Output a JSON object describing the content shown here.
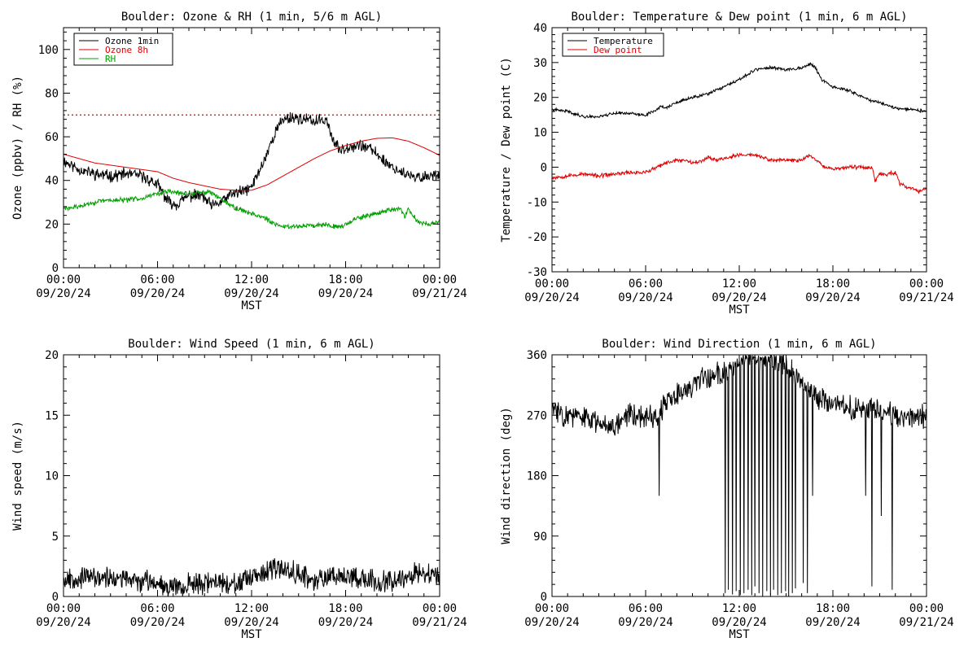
{
  "chart_data": [
    {
      "type": "line",
      "title": "Boulder: Ozone & RH (1 min, 5/6 m AGL)",
      "ylabel": "Ozone (ppbv) / RH (%)",
      "xlabel": "MST",
      "ylim": [
        0,
        110
      ],
      "yticks": [
        0,
        20,
        40,
        60,
        80,
        100
      ],
      "xlim_hours": [
        0,
        24
      ],
      "xticks": [
        {
          "h": 0,
          "time": "00:00",
          "date": "09/20/24"
        },
        {
          "h": 6,
          "time": "06:00",
          "date": "09/20/24"
        },
        {
          "h": 12,
          "time": "12:00",
          "date": "09/20/24"
        },
        {
          "h": 18,
          "time": "18:00",
          "date": "09/20/24"
        },
        {
          "h": 24,
          "time": "00:00",
          "date": "09/21/24"
        }
      ],
      "legend_position": "top-left",
      "reference_line": {
        "y": 70,
        "color": "#d40000",
        "style": "dotted"
      },
      "series": [
        {
          "name": "Ozone 1min",
          "color": "#000000",
          "noise": 2.2,
          "seed": 11,
          "points": [
            [
              0,
              49
            ],
            [
              1,
              45
            ],
            [
              2,
              43
            ],
            [
              3,
              42
            ],
            [
              4,
              43
            ],
            [
              5,
              42
            ],
            [
              6,
              38
            ],
            [
              6.7,
              30
            ],
            [
              7.2,
              29
            ],
            [
              8,
              33
            ],
            [
              8.8,
              33
            ],
            [
              9.5,
              28
            ],
            [
              10,
              30
            ],
            [
              10.8,
              34
            ],
            [
              11.5,
              35
            ],
            [
              12,
              37
            ],
            [
              12.8,
              49
            ],
            [
              13.5,
              62
            ],
            [
              14,
              68
            ],
            [
              14.6,
              69
            ],
            [
              15.3,
              68
            ],
            [
              16,
              67
            ],
            [
              16.8,
              68
            ],
            [
              17.2,
              58
            ],
            [
              17.6,
              54
            ],
            [
              18.3,
              56
            ],
            [
              19,
              56
            ],
            [
              19.7,
              54
            ],
            [
              20.3,
              50
            ],
            [
              21,
              46
            ],
            [
              21.8,
              43
            ],
            [
              22.4,
              41
            ],
            [
              23.2,
              42
            ],
            [
              24,
              43
            ]
          ]
        },
        {
          "name": "Ozone 8h",
          "color": "#e00000",
          "noise": 0,
          "seed": 0,
          "points": [
            [
              0,
              52
            ],
            [
              2,
              48
            ],
            [
              4,
              46
            ],
            [
              6,
              44
            ],
            [
              7,
              41
            ],
            [
              8,
              39
            ],
            [
              9,
              37.5
            ],
            [
              10,
              36
            ],
            [
              11,
              35.5
            ],
            [
              12,
              35.5
            ],
            [
              13,
              38
            ],
            [
              14,
              42
            ],
            [
              15,
              46
            ],
            [
              16,
              50
            ],
            [
              17,
              53.5
            ],
            [
              18,
              56
            ],
            [
              19,
              58
            ],
            [
              20,
              59.3
            ],
            [
              21,
              59.5
            ],
            [
              22,
              58
            ],
            [
              23,
              55
            ],
            [
              24,
              51.5
            ]
          ]
        },
        {
          "name": "RH",
          "color": "#00a000",
          "noise": 0.9,
          "seed": 29,
          "points": [
            [
              0,
              27
            ],
            [
              1,
              28
            ],
            [
              2,
              30
            ],
            [
              3,
              31
            ],
            [
              4,
              31
            ],
            [
              5,
              32
            ],
            [
              6,
              34
            ],
            [
              6.8,
              35
            ],
            [
              7.5,
              34
            ],
            [
              8.5,
              34
            ],
            [
              9.2,
              35
            ],
            [
              10,
              32
            ],
            [
              10.8,
              28
            ],
            [
              11.5,
              26
            ],
            [
              12,
              25
            ],
            [
              12.8,
              23
            ],
            [
              13.4,
              20
            ],
            [
              14,
              19
            ],
            [
              15,
              19
            ],
            [
              16,
              19.5
            ],
            [
              16.8,
              20
            ],
            [
              17.3,
              19
            ],
            [
              17.8,
              19
            ],
            [
              18.5,
              22
            ],
            [
              19.5,
              24
            ],
            [
              20.5,
              26
            ],
            [
              21.5,
              27
            ],
            [
              21.8,
              23
            ],
            [
              22,
              27
            ],
            [
              22.6,
              21
            ],
            [
              23.3,
              20
            ],
            [
              24,
              21
            ]
          ]
        }
      ]
    },
    {
      "type": "line",
      "title": "Boulder: Temperature & Dew point (1 min, 6 m AGL)",
      "ylabel": "Temperature / Dew point (C)",
      "xlabel": "MST",
      "ylim": [
        -30,
        40
      ],
      "yticks": [
        -30,
        -20,
        -10,
        0,
        10,
        20,
        30,
        40
      ],
      "xlim_hours": [
        0,
        24
      ],
      "xticks": [
        {
          "h": 0,
          "time": "00:00",
          "date": "09/20/24"
        },
        {
          "h": 6,
          "time": "06:00",
          "date": "09/20/24"
        },
        {
          "h": 12,
          "time": "12:00",
          "date": "09/20/24"
        },
        {
          "h": 18,
          "time": "18:00",
          "date": "09/20/24"
        },
        {
          "h": 24,
          "time": "00:00",
          "date": "09/21/24"
        }
      ],
      "legend_position": "top-left",
      "series": [
        {
          "name": "Temperature",
          "color": "#000000",
          "noise": 0.35,
          "seed": 41,
          "points": [
            [
              0,
              16.5
            ],
            [
              1,
              16
            ],
            [
              2,
              14.5
            ],
            [
              3,
              14.5
            ],
            [
              4,
              15.5
            ],
            [
              5,
              15.5
            ],
            [
              5.5,
              15
            ],
            [
              6,
              15
            ],
            [
              6.7,
              16.5
            ],
            [
              7,
              17.5
            ],
            [
              7.3,
              17
            ],
            [
              8,
              18.5
            ],
            [
              9,
              20
            ],
            [
              10,
              21
            ],
            [
              11,
              23
            ],
            [
              12,
              25
            ],
            [
              13,
              28
            ],
            [
              14,
              28.5
            ],
            [
              15,
              28
            ],
            [
              16,
              28.5
            ],
            [
              16.5,
              29.5
            ],
            [
              16.8,
              29
            ],
            [
              17.3,
              25
            ],
            [
              18,
              23
            ],
            [
              19,
              22
            ],
            [
              20,
              20
            ],
            [
              20.5,
              19
            ],
            [
              21,
              18.5
            ],
            [
              22,
              17
            ],
            [
              23,
              16.5
            ],
            [
              24,
              16
            ]
          ]
        },
        {
          "name": "Dew point",
          "color": "#e00000",
          "noise": 0.45,
          "seed": 53,
          "points": [
            [
              0,
              -3
            ],
            [
              1,
              -2.5
            ],
            [
              2,
              -2
            ],
            [
              3,
              -2.5
            ],
            [
              4,
              -2
            ],
            [
              5,
              -1.5
            ],
            [
              6,
              -1.5
            ],
            [
              6.5,
              -0.5
            ],
            [
              7,
              0.5
            ],
            [
              7.5,
              1.5
            ],
            [
              8,
              2
            ],
            [
              8.5,
              2
            ],
            [
              9,
              1.5
            ],
            [
              9.5,
              1.5
            ],
            [
              10,
              3
            ],
            [
              10.5,
              2
            ],
            [
              11,
              2.5
            ],
            [
              12,
              3.5
            ],
            [
              13,
              3.5
            ],
            [
              14,
              2
            ],
            [
              15,
              2
            ],
            [
              16,
              2
            ],
            [
              16.5,
              3.5
            ],
            [
              17,
              2
            ],
            [
              17.5,
              0
            ],
            [
              18,
              -0.5
            ],
            [
              19,
              0
            ],
            [
              20,
              0
            ],
            [
              20.5,
              0
            ],
            [
              20.7,
              -4
            ],
            [
              21,
              -2
            ],
            [
              21.5,
              -2
            ],
            [
              22,
              -1.5
            ],
            [
              22.3,
              -5
            ],
            [
              23,
              -6
            ],
            [
              23.5,
              -7
            ],
            [
              24,
              -6
            ]
          ]
        }
      ]
    },
    {
      "type": "line",
      "title": "Boulder: Wind Speed (1 min, 6 m AGL)",
      "ylabel": "Wind speed (m/s)",
      "xlabel": "MST",
      "ylim": [
        0,
        20
      ],
      "yticks": [
        0,
        5,
        10,
        15,
        20
      ],
      "xlim_hours": [
        0,
        24
      ],
      "xticks": [
        {
          "h": 0,
          "time": "00:00",
          "date": "09/20/24"
        },
        {
          "h": 6,
          "time": "06:00",
          "date": "09/20/24"
        },
        {
          "h": 12,
          "time": "12:00",
          "date": "09/20/24"
        },
        {
          "h": 18,
          "time": "18:00",
          "date": "09/20/24"
        },
        {
          "h": 24,
          "time": "00:00",
          "date": "09/21/24"
        }
      ],
      "series": [
        {
          "name": "",
          "color": "#000000",
          "noise": 0.7,
          "seed": 67,
          "floor": 0,
          "points": [
            [
              0,
              1.5
            ],
            [
              2,
              1.6
            ],
            [
              4,
              1.4
            ],
            [
              6,
              1.2
            ],
            [
              7,
              0.8
            ],
            [
              8,
              1.0
            ],
            [
              10,
              1.2
            ],
            [
              11,
              1.0
            ],
            [
              12,
              1.4
            ],
            [
              13,
              2.0
            ],
            [
              14,
              2.4
            ],
            [
              15,
              2.0
            ],
            [
              16,
              1.2
            ],
            [
              17,
              1.8
            ],
            [
              18,
              1.8
            ],
            [
              19,
              1.5
            ],
            [
              20,
              1.2
            ],
            [
              21,
              1.4
            ],
            [
              22,
              1.8
            ],
            [
              23,
              1.9
            ],
            [
              24,
              1.6
            ]
          ]
        }
      ]
    },
    {
      "type": "line",
      "title": "Boulder: Wind Direction (1 min, 6 m AGL)",
      "ylabel": "Wind direction (deg)",
      "xlabel": "MST",
      "ylim": [
        0,
        360
      ],
      "yticks": [
        0,
        90,
        180,
        270,
        360
      ],
      "xlim_hours": [
        0,
        24
      ],
      "xticks": [
        {
          "h": 0,
          "time": "00:00",
          "date": "09/20/24"
        },
        {
          "h": 6,
          "time": "06:00",
          "date": "09/20/24"
        },
        {
          "h": 12,
          "time": "12:00",
          "date": "09/20/24"
        },
        {
          "h": 18,
          "time": "18:00",
          "date": "09/20/24"
        },
        {
          "h": 24,
          "time": "00:00",
          "date": "09/21/24"
        }
      ],
      "series": [
        {
          "name": "",
          "color": "#000000",
          "noise": 14,
          "seed": 83,
          "wrap": true,
          "points": [
            [
              0,
              280
            ],
            [
              1,
              270
            ],
            [
              2,
              265
            ],
            [
              3,
              260
            ],
            [
              4,
              255
            ],
            [
              5,
              275
            ],
            [
              6,
              265
            ],
            [
              6.8,
              270
            ],
            [
              7.2,
              285
            ],
            [
              8,
              300
            ],
            [
              9,
              315
            ],
            [
              10,
              325
            ],
            [
              11,
              335
            ],
            [
              11.5,
              340
            ],
            [
              12,
              350
            ],
            [
              13,
              355
            ],
            [
              14,
              350
            ],
            [
              15,
              345
            ],
            [
              16,
              320
            ],
            [
              17,
              295
            ],
            [
              18,
              285
            ],
            [
              19,
              280
            ],
            [
              20,
              282
            ],
            [
              21,
              280
            ],
            [
              22,
              270
            ],
            [
              23,
              265
            ],
            [
              24,
              270
            ]
          ],
          "spikes": [
            [
              6.85,
              150
            ],
            [
              11.1,
              5
            ],
            [
              11.3,
              10
            ],
            [
              11.55,
              3
            ],
            [
              11.8,
              8
            ],
            [
              12.05,
              2
            ],
            [
              12.3,
              5
            ],
            [
              12.55,
              10
            ],
            [
              12.8,
              2
            ],
            [
              13.0,
              15
            ],
            [
              13.25,
              5
            ],
            [
              13.5,
              0
            ],
            [
              13.75,
              8
            ],
            [
              14.0,
              3
            ],
            [
              14.2,
              10
            ],
            [
              14.45,
              2
            ],
            [
              14.7,
              5
            ],
            [
              14.95,
              8
            ],
            [
              15.15,
              0
            ],
            [
              15.4,
              5
            ],
            [
              15.6,
              12
            ],
            [
              16.1,
              20
            ],
            [
              16.35,
              5
            ],
            [
              16.7,
              150
            ],
            [
              20.5,
              15
            ],
            [
              21.8,
              10
            ],
            [
              20.1,
              150
            ],
            [
              21.1,
              120
            ]
          ]
        }
      ]
    }
  ]
}
